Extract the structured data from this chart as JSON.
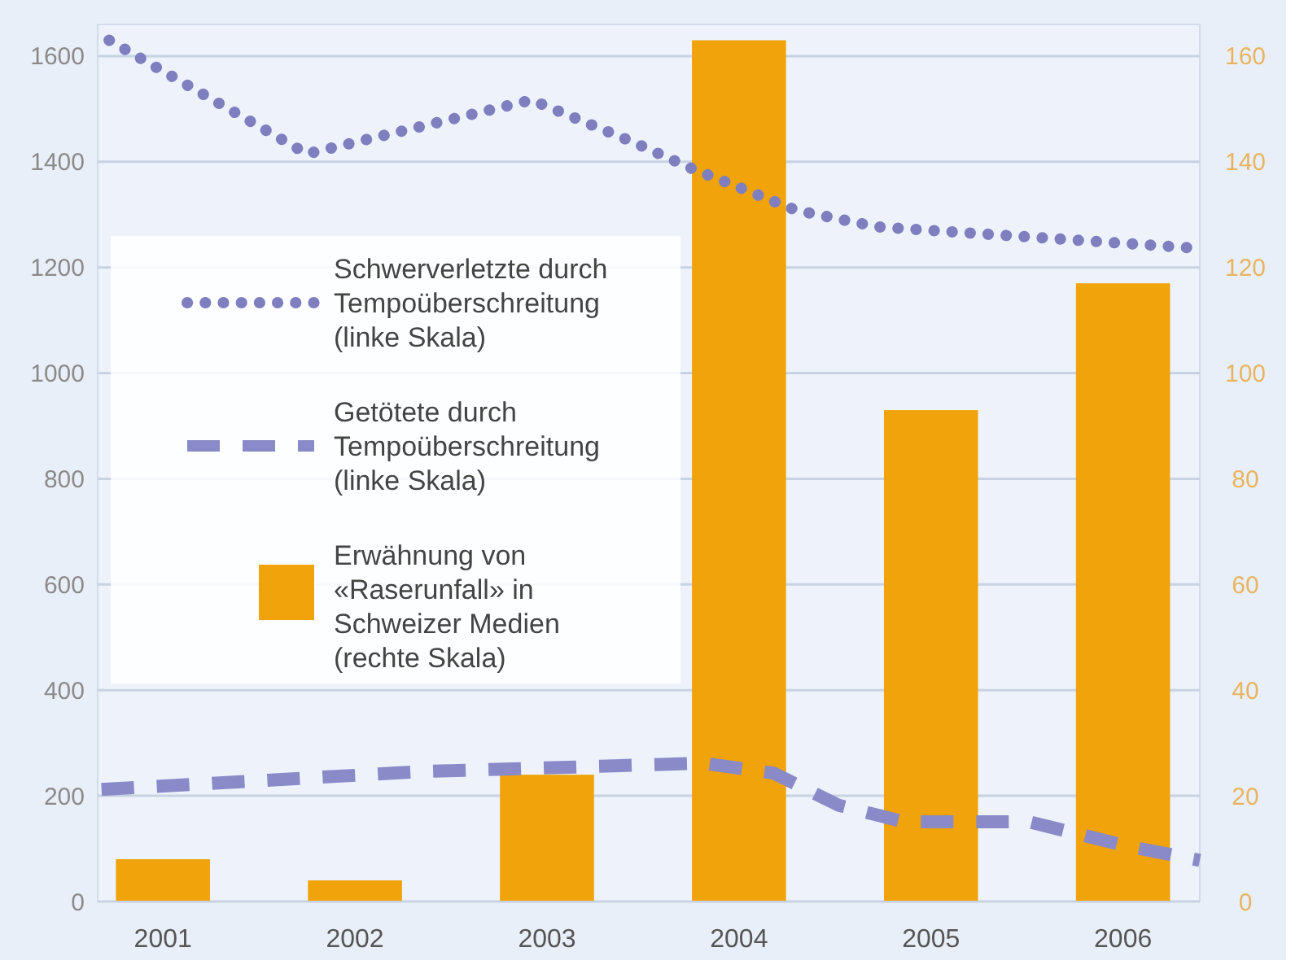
{
  "chart_data": {
    "type": "bar",
    "x": [
      2001,
      2002,
      2003,
      2004,
      2005,
      2006
    ],
    "xlim": [
      2000.66,
      2006.4
    ],
    "xticks": [
      2001,
      2002,
      2003,
      2004,
      2005,
      2006
    ],
    "ylim": [
      0,
      1660
    ],
    "yticks": [
      0,
      200,
      400,
      600,
      800,
      1000,
      1200,
      1400,
      1600
    ],
    "y2lim": [
      0,
      166
    ],
    "y2ticks": [
      0,
      20,
      40,
      60,
      80,
      100,
      120,
      140,
      160
    ],
    "grid": "y",
    "legend": "left",
    "series": [
      {
        "name": "Schwerverletzte durch Tempoüberschreitung (linke Skala)",
        "type": "line",
        "line_style": "dotted",
        "color": "#7f7fc0",
        "x": [
          2000.72,
          2001.75,
          2002.92,
          2003.45,
          2003.73,
          2004.3,
          2004.72,
          2006.36
        ],
        "values": [
          1630,
          1415,
          1517,
          1437,
          1391,
          1308,
          1277,
          1237
        ]
      },
      {
        "name": "Getötete durch Tempoüberschreitung (linke Skala)",
        "type": "line",
        "line_style": "dashed",
        "color": "#8a8ac8",
        "x": [
          2000.68,
          2002.35,
          2003.19,
          2003.81,
          2004.18,
          2004.52,
          2004.86,
          2005.51,
          2006.02,
          2006.4
        ],
        "values": [
          212,
          246,
          255,
          262,
          243,
          182,
          151,
          151,
          105,
          78
        ]
      },
      {
        "name": "Erwähnung von «Raserunfall» in Schweizer Medien (rechte Skala)",
        "axis": "y2",
        "color": "#f0a30a",
        "values": [
          8,
          4,
          24,
          163,
          93,
          117
        ]
      }
    ]
  }
}
